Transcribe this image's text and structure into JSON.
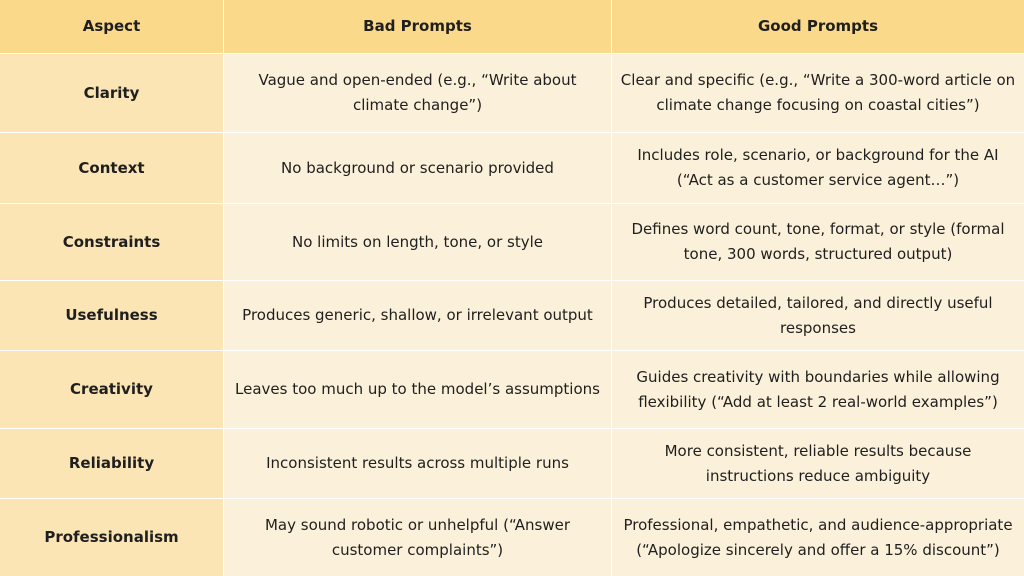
{
  "headers": [
    "Aspect",
    "Bad Prompts",
    "Good Prompts"
  ],
  "rows": [
    {
      "aspect": "Clarity",
      "bad": "Vague and open-ended (e.g., “Write about climate change”)",
      "good": "Clear and specific (e.g., “Write a 300-word article on climate change focusing on coastal cities”)"
    },
    {
      "aspect": "Context",
      "bad": "No background or scenario provided",
      "good": "Includes role, scenario, or background for the AI (“Act as a customer service agent…”)"
    },
    {
      "aspect": "Constraints",
      "bad": "No limits on length, tone, or style",
      "good": "Defines word count, tone, format, or style (formal tone, 300 words, structured output)"
    },
    {
      "aspect": "Usefulness",
      "bad": "Produces generic, shallow, or irrelevant output",
      "good": "Produces detailed, tailored, and directly useful responses"
    },
    {
      "aspect": "Creativity",
      "bad": "Leaves too much up to the model’s assumptions",
      "good": "Guides creativity with boundaries while allowing flexibility (“Add at least 2 real-world examples”)"
    },
    {
      "aspect": "Reliability",
      "bad": "Inconsistent results across multiple runs",
      "good": "More consistent, reliable results because instructions reduce ambiguity"
    },
    {
      "aspect": "Professionalism",
      "bad": "May sound robotic or unhelpful (“Answer customer complaints”)",
      "good": "Professional, empathetic, and audience-appropriate (“Apologize sincerely and offer a 15% discount”)"
    }
  ],
  "colors": {
    "header_bg": "#fbd98a",
    "aspect_bg": "#fbe5b4",
    "body_bg": "#fbf0d9"
  }
}
